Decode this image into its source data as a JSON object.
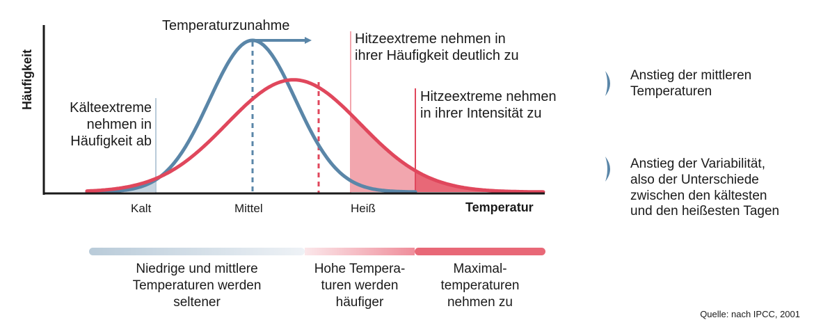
{
  "chart_data": {
    "type": "area",
    "ylabel": "Häufigkeit",
    "xlabel": "Temperatur",
    "x_ticks": [
      "Kalt",
      "Mittel",
      "Heiß"
    ],
    "grid": false,
    "series": [
      {
        "color": "#5a86a8",
        "distribution": "normal",
        "mean": 0,
        "sd": 1,
        "relative_peak": 1.0
      },
      {
        "color": "#e0475c",
        "distribution": "normal",
        "mean": 0.95,
        "sd": 1.55,
        "relative_peak": 0.74
      }
    ],
    "annotations": {
      "warming": "Temperaturzunahme",
      "cold_extremes": [
        "Kälteextreme",
        "nehmen in",
        "Häufigkeit ab"
      ],
      "heat_frequency": [
        "Hitzeextreme nehmen in",
        "ihrer Häufigkeit deutlich zu"
      ],
      "heat_intensity": [
        "Hitzeextreme nehmen",
        "in ihrer Intensität zu"
      ]
    }
  },
  "legend": [
    {
      "lines": [
        "Anstieg der mittleren",
        "Temperaturen"
      ],
      "icon": "chevron-right-icon"
    },
    {
      "lines": [
        "Anstieg der Variabilität,",
        "also der Unterschiede",
        "zwischen den kältesten",
        "und den heißesten Tagen"
      ],
      "icon": "chevron-right-icon"
    }
  ],
  "bands": [
    {
      "lines": [
        "Niedrige und mittlere",
        "Temperaturen werden",
        "seltener"
      ]
    },
    {
      "lines": [
        "Hohe Tempera-",
        "turen werden",
        "häufiger"
      ]
    },
    {
      "lines": [
        "Maximal-",
        "temperaturen",
        "nehmen zu"
      ]
    }
  ],
  "colors": {
    "blue": "#5a86a8",
    "red": "#e0475c",
    "light_red": "#f2a6ae",
    "light_blue": "#c5d4e0",
    "axis": "#1a1a1a"
  },
  "source": "Quelle: nach IPCC, 2001"
}
